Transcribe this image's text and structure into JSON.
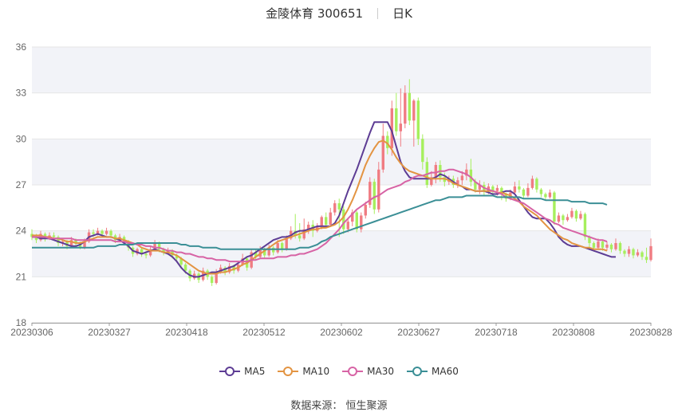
{
  "title": {
    "name": "金陵体育 300651",
    "period": "日K"
  },
  "source": "数据来源： 恒生聚源",
  "chart_data": {
    "type": "candlestick",
    "ylim": [
      18,
      36
    ],
    "yticks": [
      "18",
      "21",
      "24",
      "27",
      "30",
      "33",
      "36"
    ],
    "xticks": [
      "20230306",
      "20230327",
      "20230418",
      "20230512",
      "20230602",
      "20230627",
      "20230718",
      "20230808",
      "20230828"
    ],
    "grid": true,
    "legend_position": "bottom",
    "colors": {
      "up": "#f07c82",
      "down": "#a6ef5d",
      "ma5": "#5d3c94",
      "ma10": "#e39442",
      "ma30": "#d763a5",
      "ma60": "#3b8f96",
      "band": "#f2f3f8"
    },
    "legend": [
      "MA5",
      "MA10",
      "MA30",
      "MA60"
    ],
    "candles": [
      [
        23.8,
        23.6,
        24.1,
        23.4
      ],
      [
        23.6,
        23.4,
        23.8,
        23.2
      ],
      [
        23.4,
        23.8,
        24.0,
        23.3
      ],
      [
        23.8,
        23.5,
        23.9,
        23.3
      ],
      [
        23.5,
        23.7,
        23.9,
        23.4
      ],
      [
        23.7,
        23.6,
        23.9,
        23.4
      ],
      [
        23.6,
        23.2,
        23.7,
        23.0
      ],
      [
        23.2,
        23.3,
        23.5,
        23.0
      ],
      [
        23.3,
        23.0,
        23.4,
        22.8
      ],
      [
        23.0,
        23.4,
        23.6,
        22.9
      ],
      [
        23.4,
        23.2,
        23.5,
        23.0
      ],
      [
        23.2,
        22.9,
        23.3,
        22.8
      ],
      [
        22.9,
        23.3,
        23.5,
        22.8
      ],
      [
        23.3,
        23.9,
        24.1,
        23.2
      ],
      [
        23.9,
        23.8,
        24.1,
        23.6
      ],
      [
        23.8,
        24.0,
        24.2,
        23.7
      ],
      [
        24.0,
        23.8,
        24.1,
        23.6
      ],
      [
        23.8,
        24.0,
        24.2,
        23.7
      ],
      [
        24.0,
        23.7,
        24.1,
        23.5
      ],
      [
        23.7,
        23.4,
        23.8,
        23.2
      ],
      [
        23.4,
        23.6,
        23.8,
        23.3
      ],
      [
        23.6,
        23.3,
        23.7,
        23.1
      ],
      [
        23.3,
        22.9,
        23.4,
        22.7
      ],
      [
        22.9,
        22.5,
        23.0,
        22.3
      ],
      [
        22.5,
        22.8,
        22.9,
        22.4
      ],
      [
        22.8,
        22.5,
        22.9,
        22.3
      ],
      [
        22.5,
        22.4,
        22.7,
        22.2
      ],
      [
        22.4,
        22.8,
        23.0,
        22.3
      ],
      [
        22.8,
        23.2,
        23.4,
        22.7
      ],
      [
        23.2,
        22.8,
        23.3,
        22.6
      ],
      [
        22.8,
        22.6,
        22.9,
        22.4
      ],
      [
        22.6,
        22.7,
        22.9,
        22.5
      ],
      [
        22.7,
        22.4,
        22.8,
        22.2
      ],
      [
        22.4,
        22.2,
        22.5,
        22.0
      ],
      [
        22.2,
        21.8,
        22.3,
        21.6
      ],
      [
        21.8,
        21.4,
        21.9,
        21.2
      ],
      [
        21.4,
        20.9,
        21.5,
        20.7
      ],
      [
        20.9,
        21.2,
        21.4,
        20.8
      ],
      [
        21.2,
        20.8,
        21.3,
        20.6
      ],
      [
        20.8,
        21.4,
        21.6,
        20.7
      ],
      [
        21.4,
        21.0,
        21.5,
        20.8
      ],
      [
        21.0,
        20.6,
        21.1,
        20.4
      ],
      [
        20.6,
        21.3,
        21.5,
        20.5
      ],
      [
        21.3,
        21.6,
        21.8,
        21.2
      ],
      [
        21.6,
        21.3,
        21.7,
        21.1
      ],
      [
        21.3,
        21.7,
        21.9,
        21.2
      ],
      [
        21.7,
        21.4,
        21.8,
        21.2
      ],
      [
        21.4,
        21.8,
        22.0,
        21.3
      ],
      [
        21.8,
        22.2,
        22.5,
        21.7
      ],
      [
        22.2,
        21.6,
        22.3,
        21.4
      ],
      [
        21.6,
        22.6,
        22.8,
        21.5
      ],
      [
        22.6,
        22.3,
        22.8,
        22.1
      ],
      [
        22.3,
        22.8,
        23.0,
        22.2
      ],
      [
        22.8,
        22.4,
        22.9,
        22.2
      ],
      [
        22.4,
        22.9,
        23.1,
        22.3
      ],
      [
        22.9,
        22.6,
        23.0,
        22.4
      ],
      [
        22.6,
        23.2,
        23.4,
        22.5
      ],
      [
        23.2,
        22.8,
        23.3,
        22.6
      ],
      [
        22.8,
        23.5,
        23.7,
        22.7
      ],
      [
        23.5,
        24.0,
        24.3,
        23.4
      ],
      [
        24.0,
        23.7,
        25.1,
        23.5
      ],
      [
        23.7,
        23.5,
        24.5,
        23.3
      ],
      [
        23.5,
        24.1,
        24.8,
        23.4
      ],
      [
        24.1,
        24.4,
        24.6,
        23.8
      ],
      [
        24.4,
        24.0,
        24.7,
        23.6
      ],
      [
        24.0,
        24.3,
        24.5,
        23.9
      ],
      [
        24.3,
        24.9,
        25.0,
        24.1
      ],
      [
        24.9,
        24.4,
        25.2,
        24.2
      ],
      [
        24.4,
        25.2,
        25.5,
        24.3
      ],
      [
        25.2,
        25.8,
        26.0,
        25.0
      ],
      [
        25.8,
        25.4,
        26.1,
        23.6
      ],
      [
        25.4,
        24.1,
        25.6,
        23.8
      ],
      [
        24.1,
        24.6,
        24.8,
        23.9
      ],
      [
        24.6,
        25.2,
        25.4,
        24.3
      ],
      [
        25.2,
        24.1,
        25.3,
        23.9
      ],
      [
        24.1,
        25.0,
        25.2,
        23.9
      ],
      [
        25.0,
        25.7,
        25.9,
        24.8
      ],
      [
        25.7,
        27.2,
        27.5,
        25.5
      ],
      [
        27.2,
        25.4,
        27.4,
        25.1
      ],
      [
        25.4,
        28.0,
        28.5,
        25.2
      ],
      [
        28.0,
        30.2,
        31.0,
        27.8
      ],
      [
        30.2,
        29.4,
        30.5,
        29.0
      ],
      [
        29.4,
        32.0,
        32.5,
        28.9
      ],
      [
        32.0,
        30.5,
        33.0,
        30.2
      ],
      [
        30.5,
        31.0,
        33.3,
        29.5
      ],
      [
        31.0,
        33.0,
        33.5,
        30.7
      ],
      [
        33.0,
        31.2,
        33.9,
        30.9
      ],
      [
        31.2,
        32.5,
        32.6,
        29.5
      ],
      [
        32.5,
        30.0,
        32.7,
        29.6
      ],
      [
        30.0,
        28.5,
        30.3,
        28.0
      ],
      [
        28.5,
        27.0,
        28.8,
        26.8
      ],
      [
        27.0,
        27.5,
        27.9,
        26.9
      ],
      [
        27.5,
        28.3,
        28.5,
        27.1
      ],
      [
        28.3,
        27.5,
        28.6,
        27.2
      ],
      [
        27.5,
        27.2,
        27.8,
        26.9
      ],
      [
        27.2,
        27.4,
        27.6,
        27.0
      ],
      [
        27.4,
        27.0,
        27.6,
        26.8
      ],
      [
        27.0,
        27.3,
        27.5,
        26.8
      ],
      [
        27.3,
        27.6,
        27.9,
        27.0
      ],
      [
        27.6,
        28.0,
        28.4,
        27.3
      ],
      [
        28.0,
        27.2,
        28.7,
        26.9
      ],
      [
        27.2,
        26.7,
        27.4,
        26.5
      ],
      [
        26.7,
        27.0,
        27.3,
        26.4
      ],
      [
        27.0,
        26.6,
        27.2,
        26.3
      ],
      [
        26.6,
        26.9,
        27.1,
        26.4
      ],
      [
        26.9,
        26.6,
        27.0,
        26.4
      ],
      [
        26.6,
        26.8,
        27.0,
        26.3
      ],
      [
        26.8,
        26.4,
        26.9,
        26.0
      ],
      [
        26.4,
        26.1,
        26.5,
        25.9
      ],
      [
        26.1,
        26.5,
        26.7,
        26.0
      ],
      [
        26.5,
        26.9,
        27.2,
        26.4
      ],
      [
        26.9,
        26.7,
        27.3,
        26.5
      ],
      [
        26.7,
        26.3,
        26.8,
        26.1
      ],
      [
        26.3,
        26.8,
        27.1,
        26.2
      ],
      [
        26.8,
        27.4,
        27.6,
        26.7
      ],
      [
        27.4,
        26.7,
        27.5,
        26.5
      ],
      [
        26.7,
        26.4,
        26.8,
        26.2
      ],
      [
        26.4,
        26.2,
        26.5,
        26.0
      ],
      [
        26.2,
        26.5,
        26.7,
        26.1
      ],
      [
        26.5,
        24.6,
        26.6,
        24.4
      ],
      [
        24.6,
        25.0,
        25.2,
        24.5
      ],
      [
        25.0,
        24.7,
        25.1,
        24.4
      ],
      [
        24.7,
        24.9,
        25.1,
        24.6
      ],
      [
        24.9,
        25.3,
        25.5,
        24.8
      ],
      [
        25.3,
        24.8,
        25.4,
        24.6
      ],
      [
        24.8,
        25.1,
        25.3,
        24.7
      ],
      [
        25.1,
        23.6,
        25.2,
        23.4
      ],
      [
        23.6,
        23.2,
        23.7,
        22.8
      ],
      [
        23.2,
        22.9,
        23.3,
        22.7
      ],
      [
        22.9,
        23.3,
        23.5,
        22.8
      ],
      [
        23.3,
        22.9,
        23.4,
        22.7
      ],
      [
        22.9,
        23.1,
        23.3,
        22.7
      ],
      [
        23.1,
        22.8,
        23.2,
        22.6
      ],
      [
        22.8,
        23.2,
        23.5,
        22.7
      ],
      [
        23.2,
        22.7,
        23.3,
        22.5
      ],
      [
        22.7,
        22.5,
        22.8,
        22.3
      ],
      [
        22.5,
        22.8,
        23.0,
        22.3
      ],
      [
        22.8,
        22.4,
        22.9,
        22.2
      ],
      [
        22.4,
        22.6,
        22.8,
        22.3
      ],
      [
        22.6,
        22.3,
        22.7,
        22.1
      ],
      [
        22.3,
        22.1,
        22.9,
        21.9
      ],
      [
        22.1,
        23.0,
        23.5,
        22.0
      ]
    ],
    "series": [
      {
        "name": "MA5",
        "values": [
          23.6,
          23.6,
          23.5,
          23.5,
          23.5,
          23.4,
          23.3,
          23.2,
          23.1,
          23.0,
          23.0,
          23.1,
          23.3,
          23.6,
          23.7,
          23.8,
          23.7,
          23.6,
          23.6,
          23.5,
          23.4,
          23.2,
          23.0,
          22.7,
          22.6,
          22.5,
          22.6,
          22.7,
          22.8,
          22.7,
          22.6,
          22.5,
          22.3,
          22.0,
          21.6,
          21.3,
          21.1,
          21.0,
          21.0,
          21.1,
          21.2,
          21.3,
          21.3,
          21.4,
          21.5,
          21.6,
          21.7,
          21.9,
          22.1,
          22.3,
          22.4,
          22.6,
          22.8,
          23.0,
          23.2,
          23.4,
          23.5,
          23.6,
          23.6,
          23.7,
          23.9,
          24.0,
          24.0,
          24.1,
          24.2,
          24.3,
          24.3,
          24.3,
          24.3,
          24.5,
          25.0,
          25.8,
          26.6,
          27.3,
          28.0,
          28.8,
          29.6,
          30.4,
          31.1,
          31.1,
          31.1,
          31.1,
          30.5,
          29.5,
          28.5,
          27.9,
          27.5,
          27.4,
          27.4,
          27.4,
          27.4,
          27.4,
          27.5,
          27.7,
          27.6,
          27.4,
          27.2,
          27.0,
          26.9,
          26.7,
          26.7,
          26.6,
          26.6,
          26.6,
          26.5,
          26.4,
          26.4,
          26.5,
          26.6,
          26.6,
          26.4,
          26.0,
          25.6,
          25.2,
          24.9,
          24.8,
          24.8,
          24.8,
          24.5,
          24.1,
          23.6,
          23.3,
          23.1,
          23.0,
          23.0,
          23.0,
          22.9,
          22.8,
          22.7,
          22.6,
          22.5,
          22.4,
          22.3,
          22.3
        ]
      },
      {
        "name": "MA10",
        "values": [
          23.7,
          23.7,
          23.7,
          23.6,
          23.6,
          23.5,
          23.5,
          23.4,
          23.3,
          23.3,
          23.2,
          23.2,
          23.3,
          23.4,
          23.5,
          23.6,
          23.6,
          23.6,
          23.6,
          23.5,
          23.5,
          23.4,
          23.3,
          23.2,
          23.1,
          22.9,
          22.8,
          22.7,
          22.7,
          22.7,
          22.6,
          22.6,
          22.5,
          22.4,
          22.2,
          22.0,
          21.8,
          21.6,
          21.4,
          21.3,
          21.2,
          21.2,
          21.2,
          21.3,
          21.3,
          21.4,
          21.5,
          21.6,
          21.8,
          21.9,
          22.1,
          22.3,
          22.5,
          22.7,
          22.9,
          23.1,
          23.3,
          23.4,
          23.5,
          23.6,
          23.7,
          23.8,
          23.9,
          24.0,
          24.1,
          24.1,
          24.2,
          24.2,
          24.3,
          24.4,
          24.6,
          24.9,
          25.4,
          26.0,
          26.7,
          27.5,
          28.3,
          28.9,
          29.4,
          29.8,
          29.9,
          29.7,
          29.3,
          28.8,
          28.4,
          28.1,
          27.9,
          27.8,
          27.7,
          27.6,
          27.5,
          27.4,
          27.4,
          27.4,
          27.4,
          27.3,
          27.1,
          27.0,
          26.9,
          26.8,
          26.7,
          26.6,
          26.6,
          26.6,
          26.6,
          26.6,
          26.5,
          26.5,
          26.4,
          26.3,
          26.1,
          25.9,
          25.6,
          25.4,
          25.2,
          25.0,
          24.7,
          24.4,
          24.1,
          23.9,
          23.7,
          23.5,
          23.4,
          23.2,
          23.1,
          23.0,
          22.9,
          22.9,
          22.8,
          22.8,
          22.8,
          22.7
        ]
      },
      {
        "name": "MA30",
        "values": [
          23.6,
          23.6,
          23.6,
          23.6,
          23.5,
          23.5,
          23.5,
          23.5,
          23.5,
          23.5,
          23.4,
          23.4,
          23.4,
          23.4,
          23.4,
          23.4,
          23.4,
          23.4,
          23.4,
          23.3,
          23.3,
          23.3,
          23.2,
          23.2,
          23.1,
          23.1,
          23.0,
          23.0,
          22.9,
          22.9,
          22.8,
          22.7,
          22.7,
          22.6,
          22.6,
          22.5,
          22.5,
          22.4,
          22.3,
          22.3,
          22.2,
          22.2,
          22.1,
          22.1,
          22.1,
          22.0,
          22.0,
          22.0,
          22.0,
          22.0,
          22.1,
          22.1,
          22.2,
          22.2,
          22.2,
          22.2,
          22.3,
          22.3,
          22.3,
          22.4,
          22.4,
          22.5,
          22.5,
          22.6,
          22.7,
          22.8,
          23.0,
          23.2,
          23.5,
          23.8,
          24.1,
          24.5,
          24.8,
          25.1,
          25.4,
          25.6,
          25.8,
          26.0,
          26.2,
          26.3,
          26.5,
          26.7,
          26.8,
          26.9,
          27.0,
          27.2,
          27.3,
          27.5,
          27.6,
          27.6,
          27.7,
          27.8,
          27.8,
          27.9,
          27.9,
          28.0,
          28.0,
          27.9,
          27.8,
          27.7,
          27.5,
          27.2,
          27.0,
          26.8,
          26.7,
          26.6,
          26.5,
          26.4,
          26.2,
          26.1,
          26.0,
          25.9,
          25.8,
          25.6,
          25.4,
          25.2,
          25.0,
          24.8,
          24.7,
          24.5,
          24.4,
          24.2,
          24.1,
          24.0,
          23.9,
          23.8,
          23.7,
          23.6,
          23.5,
          23.4,
          23.4,
          23.3
        ]
      },
      {
        "name": "MA60",
        "values": [
          22.9,
          22.9,
          22.9,
          22.9,
          22.9,
          22.9,
          22.9,
          22.9,
          22.9,
          22.9,
          22.9,
          22.9,
          22.9,
          22.9,
          22.9,
          23.0,
          23.0,
          23.0,
          23.0,
          23.0,
          23.1,
          23.1,
          23.1,
          23.1,
          23.2,
          23.2,
          23.2,
          23.2,
          23.2,
          23.2,
          23.2,
          23.2,
          23.2,
          23.2,
          23.1,
          23.1,
          23.0,
          23.0,
          23.0,
          22.9,
          22.9,
          22.9,
          22.9,
          22.8,
          22.8,
          22.8,
          22.8,
          22.8,
          22.8,
          22.8,
          22.8,
          22.8,
          22.8,
          22.8,
          22.8,
          22.8,
          22.8,
          22.8,
          22.8,
          22.8,
          22.8,
          22.9,
          22.9,
          22.9,
          23.0,
          23.1,
          23.3,
          23.4,
          23.6,
          23.7,
          23.8,
          23.9,
          24.0,
          24.1,
          24.2,
          24.3,
          24.4,
          24.5,
          24.6,
          24.7,
          24.8,
          24.9,
          25.0,
          25.1,
          25.2,
          25.3,
          25.4,
          25.5,
          25.6,
          25.7,
          25.8,
          25.9,
          26.0,
          26.0,
          26.1,
          26.2,
          26.2,
          26.2,
          26.2,
          26.3,
          26.3,
          26.3,
          26.3,
          26.3,
          26.3,
          26.3,
          26.2,
          26.2,
          26.2,
          26.2,
          26.2,
          26.2,
          26.1,
          26.1,
          26.1,
          26.1,
          26.1,
          26.0,
          26.0,
          26.0,
          26.0,
          26.0,
          26.0,
          25.9,
          25.9,
          25.9,
          25.9,
          25.8,
          25.8,
          25.8,
          25.8,
          25.7
        ]
      }
    ]
  }
}
